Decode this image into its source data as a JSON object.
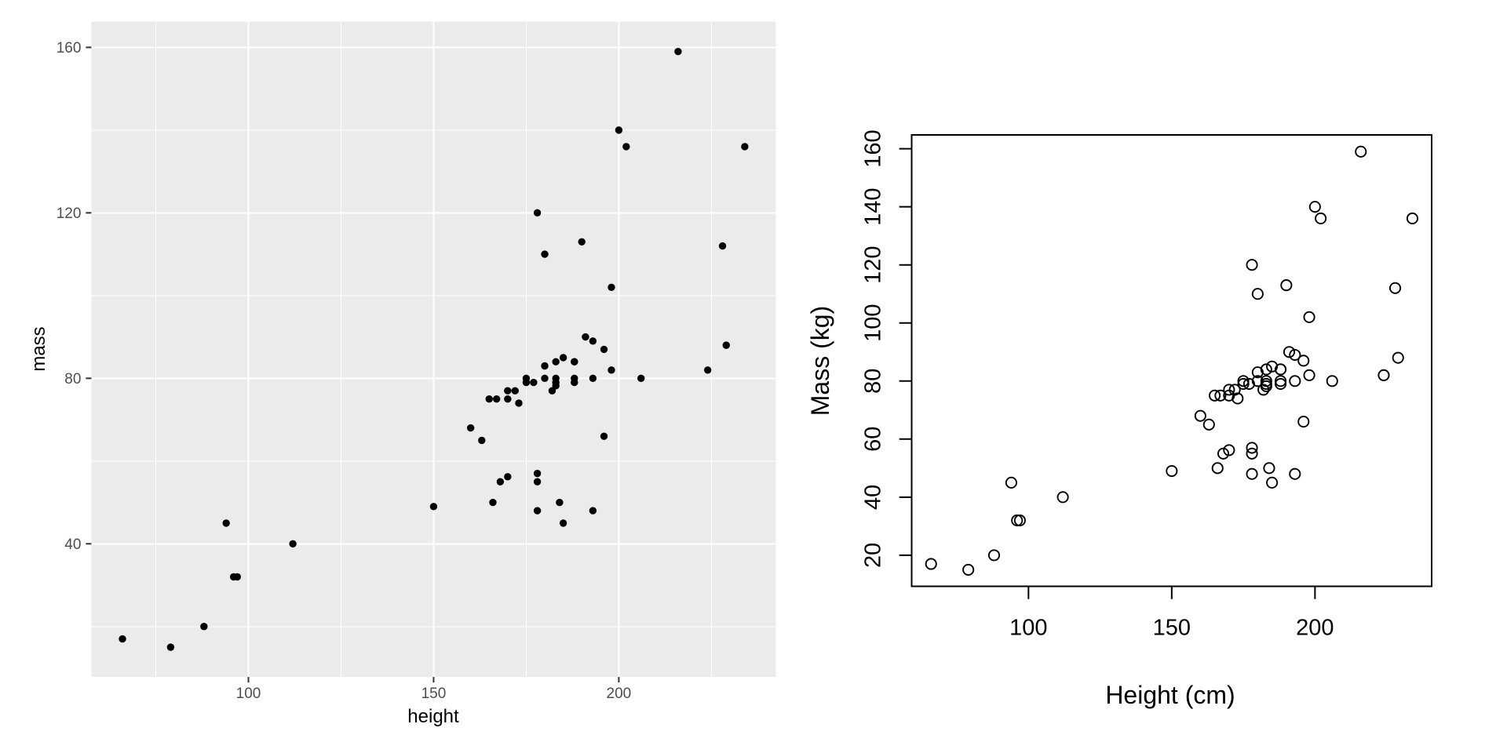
{
  "figure": {
    "background": "#ffffff",
    "description": "Two scatter plots of the same height/mass data, left in ggplot2 style, right in base R style"
  },
  "chart_data": [
    {
      "type": "scatter",
      "style": "ggplot2",
      "title": "",
      "xlabel": "height",
      "ylabel": "mass",
      "xlim": [
        57.6,
        242.4
      ],
      "ylim": [
        7.8,
        166.2
      ],
      "x_ticks": [
        100,
        150,
        200
      ],
      "y_ticks": [
        40,
        80,
        120,
        160
      ],
      "x_minor_gridlines": [
        75,
        125,
        175,
        225
      ],
      "y_minor_gridlines": [
        20,
        60,
        100,
        140
      ],
      "grid": true,
      "legend": "none",
      "panel_background": "#EBEBEB",
      "grid_color": "#FFFFFF",
      "tick_mark_color": "#333333",
      "tick_label_color": "#4D4D4D",
      "axis_title_color": "#000000",
      "point_style": "filled-circle",
      "point_color": "#000000",
      "points": [
        [
          172,
          77
        ],
        [
          167,
          75
        ],
        [
          96,
          32
        ],
        [
          202,
          136
        ],
        [
          150,
          49
        ],
        [
          178,
          120
        ],
        [
          165,
          75
        ],
        [
          97,
          32
        ],
        [
          183,
          84
        ],
        [
          182,
          77
        ],
        [
          188,
          84
        ],
        [
          228,
          112
        ],
        [
          180,
          80
        ],
        [
          173,
          74
        ],
        [
          170,
          77
        ],
        [
          180,
          110
        ],
        [
          66,
          17
        ],
        [
          170,
          75
        ],
        [
          183,
          78.2
        ],
        [
          200,
          140
        ],
        [
          190,
          113
        ],
        [
          177,
          79
        ],
        [
          175,
          79
        ],
        [
          180,
          83
        ],
        [
          88,
          20
        ],
        [
          160,
          68
        ],
        [
          193,
          89
        ],
        [
          191,
          90
        ],
        [
          196,
          66
        ],
        [
          224,
          82
        ],
        [
          112,
          40
        ],
        [
          175,
          80
        ],
        [
          178,
          55
        ],
        [
          94,
          45
        ],
        [
          163,
          65
        ],
        [
          188,
          84
        ],
        [
          198,
          82
        ],
        [
          196,
          87
        ],
        [
          184,
          50
        ],
        [
          188,
          80
        ],
        [
          185,
          85
        ],
        [
          183,
          80
        ],
        [
          170,
          56.2
        ],
        [
          166,
          50
        ],
        [
          193,
          80
        ],
        [
          183,
          79
        ],
        [
          168,
          55
        ],
        [
          198,
          102
        ],
        [
          229,
          88
        ],
        [
          79,
          15
        ],
        [
          193,
          48
        ],
        [
          178,
          57
        ],
        [
          216,
          159
        ],
        [
          234,
          136
        ],
        [
          188,
          79
        ],
        [
          178,
          48
        ],
        [
          206,
          80
        ],
        [
          185,
          45
        ]
      ]
    },
    {
      "type": "scatter",
      "style": "base-r",
      "title": "",
      "xlabel": "Height (cm)",
      "ylabel": "Mass (kg)",
      "xlim": [
        59.28,
        240.72
      ],
      "ylim": [
        9.24,
        164.76
      ],
      "x_ticks": [
        100,
        150,
        200
      ],
      "y_ticks": [
        20,
        40,
        60,
        80,
        100,
        120,
        140,
        160
      ],
      "grid": false,
      "legend": "none",
      "panel_background": "#FFFFFF",
      "box_color": "#000000",
      "tick_mark_color": "#000000",
      "tick_label_color": "#000000",
      "axis_title_color": "#000000",
      "point_style": "open-circle",
      "point_color": "#000000",
      "y_tick_label_rotation": -90,
      "points": [
        [
          172,
          77
        ],
        [
          167,
          75
        ],
        [
          96,
          32
        ],
        [
          202,
          136
        ],
        [
          150,
          49
        ],
        [
          178,
          120
        ],
        [
          165,
          75
        ],
        [
          97,
          32
        ],
        [
          183,
          84
        ],
        [
          182,
          77
        ],
        [
          188,
          84
        ],
        [
          228,
          112
        ],
        [
          180,
          80
        ],
        [
          173,
          74
        ],
        [
          170,
          77
        ],
        [
          180,
          110
        ],
        [
          66,
          17
        ],
        [
          170,
          75
        ],
        [
          183,
          78.2
        ],
        [
          200,
          140
        ],
        [
          190,
          113
        ],
        [
          177,
          79
        ],
        [
          175,
          79
        ],
        [
          180,
          83
        ],
        [
          88,
          20
        ],
        [
          160,
          68
        ],
        [
          193,
          89
        ],
        [
          191,
          90
        ],
        [
          196,
          66
        ],
        [
          224,
          82
        ],
        [
          112,
          40
        ],
        [
          175,
          80
        ],
        [
          178,
          55
        ],
        [
          94,
          45
        ],
        [
          163,
          65
        ],
        [
          188,
          84
        ],
        [
          198,
          82
        ],
        [
          196,
          87
        ],
        [
          184,
          50
        ],
        [
          188,
          80
        ],
        [
          185,
          85
        ],
        [
          183,
          80
        ],
        [
          170,
          56.2
        ],
        [
          166,
          50
        ],
        [
          193,
          80
        ],
        [
          183,
          79
        ],
        [
          168,
          55
        ],
        [
          198,
          102
        ],
        [
          229,
          88
        ],
        [
          79,
          15
        ],
        [
          193,
          48
        ],
        [
          178,
          57
        ],
        [
          216,
          159
        ],
        [
          234,
          136
        ],
        [
          188,
          79
        ],
        [
          178,
          48
        ],
        [
          206,
          80
        ],
        [
          185,
          45
        ]
      ]
    }
  ]
}
